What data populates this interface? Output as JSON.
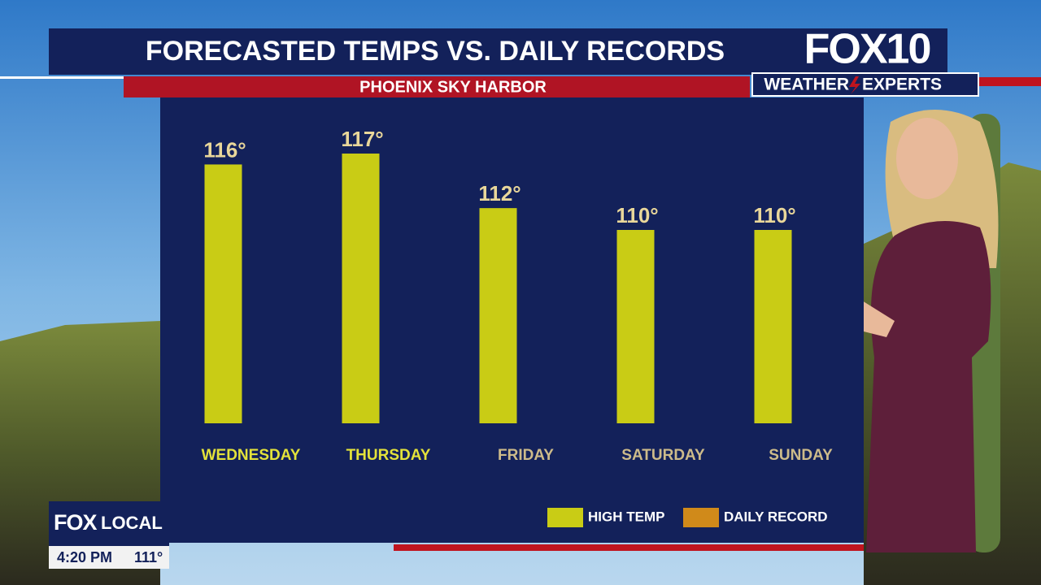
{
  "chart_data": {
    "type": "bar",
    "title": "FORECASTED TEMPS VS. DAILY RECORDS",
    "subtitle": "PHOENIX SKY HARBOR",
    "categories": [
      "WEDNESDAY",
      "THURSDAY",
      "FRIDAY",
      "SATURDAY",
      "SUNDAY"
    ],
    "category_colors": [
      "#e3e23a",
      "#e3e23a",
      "#cdbb8a",
      "#cdbb8a",
      "#cdbb8a"
    ],
    "values": [
      116,
      117,
      112,
      110,
      110
    ],
    "value_labels": [
      "116°",
      "117°",
      "112°",
      "110°",
      "110°"
    ],
    "color": "#c9cc15",
    "legend": [
      {
        "name": "HIGH TEMP",
        "color": "#c9cc15"
      },
      {
        "name": "DAILY RECORD",
        "color": "#d08a1a"
      }
    ]
  },
  "overlay": {
    "logo": "FOX10",
    "logo_left": "WEATHER",
    "logo_right": "EXPERTS",
    "bug_left": "FOX",
    "bug_right": "LOCAL",
    "time": "4:20 PM",
    "temp": "111°"
  }
}
